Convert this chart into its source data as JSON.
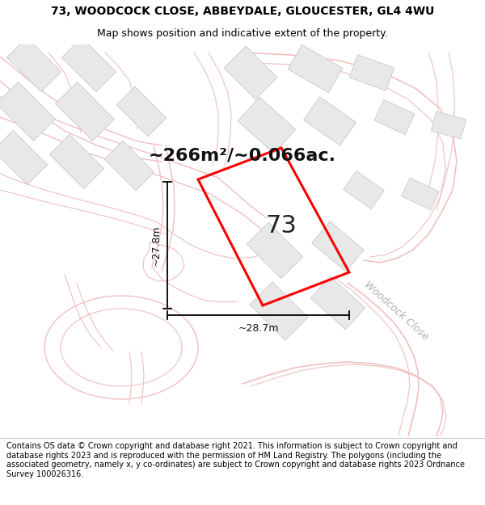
{
  "title_line1": "73, WOODCOCK CLOSE, ABBEYDALE, GLOUCESTER, GL4 4WU",
  "title_line2": "Map shows position and indicative extent of the property.",
  "area_text": "~266m²/~0.066ac.",
  "dim_width": "~28.7m",
  "dim_height": "~27.8m",
  "plot_number": "73",
  "street_label": "Woodcock Close",
  "copyright_text": "Contains OS data © Crown copyright and database right 2021. This information is subject to Crown copyright and database rights 2023 and is reproduced with the permission of HM Land Registry. The polygons (including the associated geometry, namely x, y co-ordinates) are subject to Crown copyright and database rights 2023 Ordnance Survey 100026316.",
  "map_bg": "#ffffff",
  "road_color": "#f0c0c0",
  "building_color": "#e8e8e8",
  "building_edge": "#c8c8c8",
  "plot_color": "#ff0000",
  "dim_line_color": "#000000",
  "title_fontsize": 10,
  "subtitle_fontsize": 9,
  "area_fontsize": 16,
  "plot_label_fontsize": 22,
  "dim_fontsize": 9,
  "street_fontsize": 9,
  "copyright_fontsize": 7.0
}
